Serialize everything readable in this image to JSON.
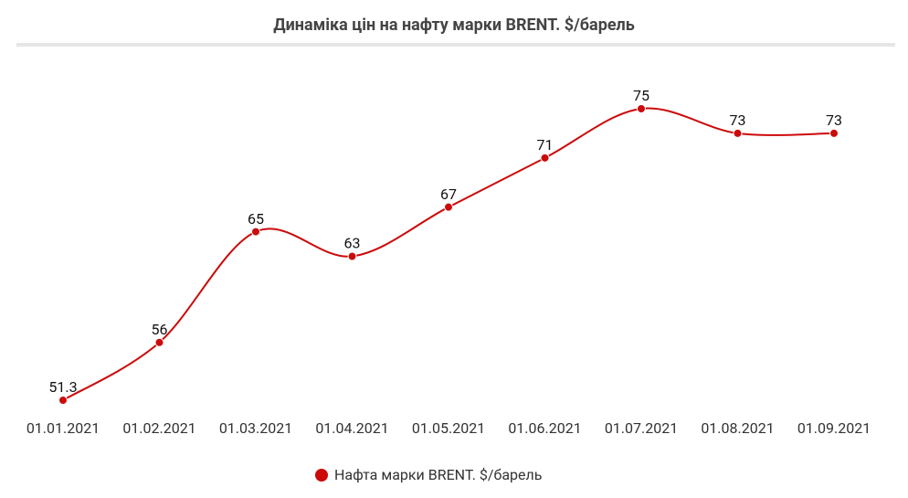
{
  "chart_data": {
    "type": "line",
    "title": "Динаміка цін на нафту марки BRENT. $/барель",
    "categories": [
      "01.01.2021",
      "01.02.2021",
      "01.03.2021",
      "01.04.2021",
      "01.05.2021",
      "01.06.2021",
      "01.07.2021",
      "01.08.2021",
      "01.09.2021"
    ],
    "series": [
      {
        "name": "Нафта марки BRENT. $/барель",
        "color": "#cc0a0a",
        "values": [
          51.3,
          56,
          65,
          63,
          67,
          71,
          75,
          73,
          73
        ]
      }
    ],
    "legend": "bottom"
  }
}
